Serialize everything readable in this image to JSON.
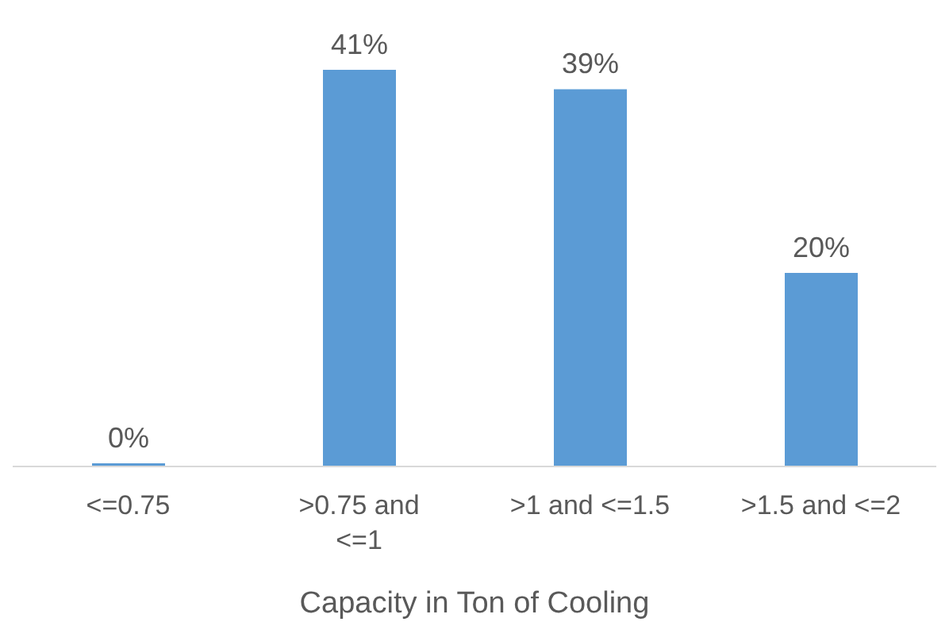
{
  "chart_data": {
    "type": "bar",
    "xlabel": "Capacity in Ton of Cooling",
    "categories": [
      "<=0.75",
      ">0.75 and <=1",
      ">1 and <=1.5",
      ">1.5 and <=2"
    ],
    "values": [
      0,
      41,
      39,
      20
    ],
    "color": "#5b9bd5",
    "value_labels": [
      "0%",
      "41%",
      "39%",
      "20%"
    ]
  }
}
